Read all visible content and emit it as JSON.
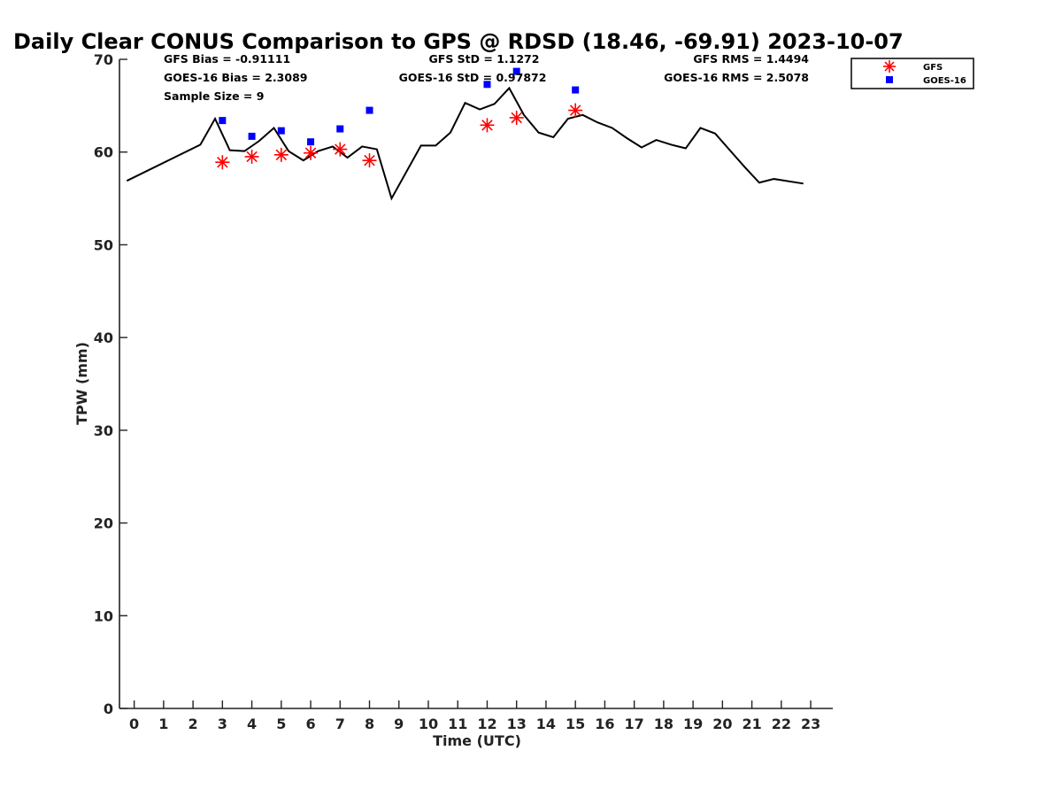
{
  "chart_data": {
    "type": "line",
    "title": "Daily Clear CONUS Comparison to GPS @ RDSD (18.46, -69.91) 2023-10-07",
    "xlabel": "Time (UTC)",
    "ylabel": "TPW (mm)",
    "xlim": [
      -0.5,
      23.75
    ],
    "ylim": [
      0,
      70
    ],
    "x_ticks": [
      0,
      1,
      2,
      3,
      4,
      5,
      6,
      7,
      8,
      9,
      10,
      11,
      12,
      13,
      14,
      15,
      16,
      17,
      18,
      19,
      20,
      21,
      22,
      23
    ],
    "y_ticks": [
      0,
      10,
      20,
      30,
      40,
      50,
      60,
      70
    ],
    "grid": false,
    "legend_position": "top-right",
    "stats": {
      "gfs_bias": "GFS Bias = -0.91111",
      "goes_bias": "GOES-16 Bias = 2.3089",
      "sample_size": "Sample Size = 9",
      "gfs_std": "GFS StD = 1.1272",
      "goes_std": "GOES-16 StD = 0.97872",
      "gfs_rms": "GFS RMS = 1.4494",
      "goes_rms": "GOES-16 RMS = 2.5078"
    },
    "series": [
      {
        "style": "line",
        "color": "#000000",
        "x": [
          -0.25,
          2.25,
          2.75,
          3.25,
          3.75,
          4.25,
          4.75,
          5.25,
          5.75,
          6.25,
          6.75,
          7.25,
          7.75,
          8.25,
          8.75,
          9.75,
          10.25,
          10.75,
          11.25,
          11.75,
          12.25,
          12.75,
          13.25,
          13.75,
          14.25,
          14.75,
          15.25,
          15.75,
          16.25,
          16.75,
          17.25,
          17.75,
          18.25,
          18.75,
          19.25,
          19.75,
          20.25,
          20.75,
          21.25,
          21.75,
          22.75
        ],
        "y": [
          56.9,
          60.8,
          63.6,
          60.2,
          60.1,
          61.2,
          62.6,
          60.1,
          59.1,
          60.1,
          60.6,
          59.4,
          60.6,
          60.3,
          55.0,
          60.7,
          60.7,
          62.1,
          65.3,
          64.6,
          65.2,
          66.9,
          64.0,
          62.1,
          61.6,
          63.6,
          64.0,
          63.2,
          62.6,
          61.5,
          60.5,
          61.3,
          60.8,
          60.4,
          62.6,
          62.0,
          60.2,
          58.4,
          56.7,
          57.1,
          56.6
        ]
      },
      {
        "name": "GFS",
        "style": "marker-asterisk",
        "color": "#ff0000",
        "x": [
          3,
          4,
          5,
          6,
          7,
          8,
          12,
          13,
          15
        ],
        "y": [
          58.9,
          59.5,
          59.7,
          59.9,
          60.3,
          59.1,
          62.9,
          63.7,
          64.5
        ]
      },
      {
        "name": "GOES-16",
        "style": "marker-square",
        "color": "#0000ff",
        "x": [
          3,
          4,
          5,
          6,
          7,
          8,
          12,
          13,
          15
        ],
        "y": [
          63.4,
          61.7,
          62.3,
          61.1,
          62.5,
          64.5,
          67.3,
          68.7,
          66.7
        ]
      }
    ]
  }
}
